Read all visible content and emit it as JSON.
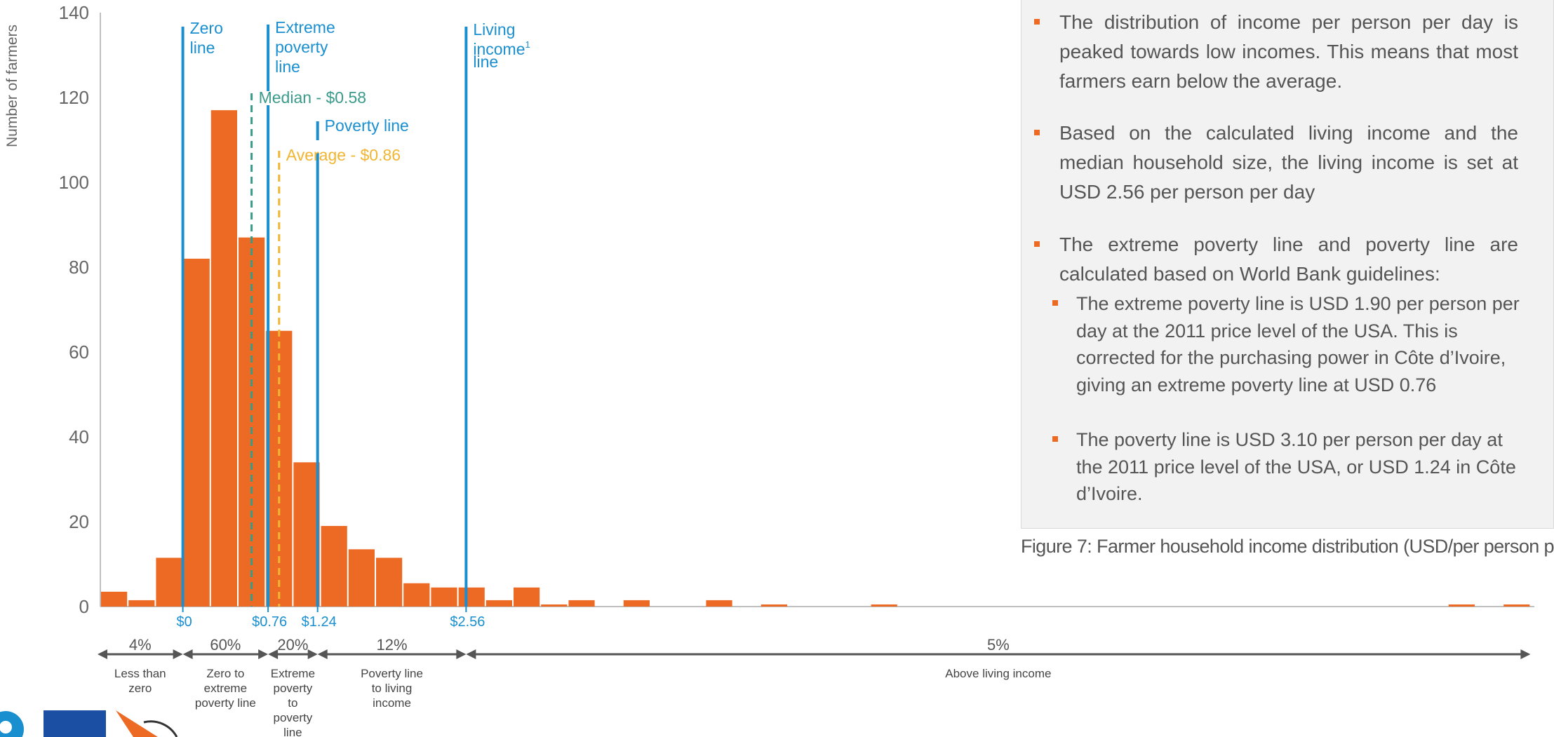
{
  "ylabel": "Number of farmers",
  "chart_data": {
    "type": "bar",
    "ylabel": "Number of farmers",
    "ylim": [
      0,
      140
    ],
    "yticks": [
      "0",
      "20",
      "40",
      "60",
      "80",
      "100",
      "120",
      "140"
    ],
    "grid": false,
    "bins": [
      {
        "bin": 0,
        "value": 3.5
      },
      {
        "bin": 1,
        "value": 1.5
      },
      {
        "bin": 2,
        "value": 11.5
      },
      {
        "bin": 3,
        "value": 82
      },
      {
        "bin": 4,
        "value": 117
      },
      {
        "bin": 5,
        "value": 87
      },
      {
        "bin": 6,
        "value": 65
      },
      {
        "bin": 7,
        "value": 34
      },
      {
        "bin": 8,
        "value": 19
      },
      {
        "bin": 9,
        "value": 13.5
      },
      {
        "bin": 10,
        "value": 11.5
      },
      {
        "bin": 11,
        "value": 5.5
      },
      {
        "bin": 12,
        "value": 4.5
      },
      {
        "bin": 13,
        "value": 4.5
      },
      {
        "bin": 14,
        "value": 1.5
      },
      {
        "bin": 15,
        "value": 4.5
      },
      {
        "bin": 16,
        "value": 0.5
      },
      {
        "bin": 17,
        "value": 1.5
      },
      {
        "bin": 19,
        "value": 1.5
      },
      {
        "bin": 22,
        "value": 1.5
      },
      {
        "bin": 24,
        "value": 0.5
      },
      {
        "bin": 28,
        "value": 0.5
      },
      {
        "bin": 49,
        "value": 0.5
      },
      {
        "bin": 51,
        "value": 0.5
      }
    ],
    "x_tick_labels": [
      {
        "label": "$0",
        "bin": 3
      },
      {
        "label": "$0.76",
        "bin": 6.1
      },
      {
        "label": "$1.24",
        "bin": 7.9
      },
      {
        "label": "$2.56",
        "bin": 13.3
      }
    ],
    "vertical_lines": [
      {
        "id": "zero",
        "lines": [
          "Zero",
          "line"
        ],
        "bin": 3,
        "style": "solid"
      },
      {
        "id": "extreme",
        "lines": [
          "Extreme",
          "poverty",
          "line"
        ],
        "bin": 6.1,
        "style": "solid"
      },
      {
        "id": "poverty",
        "lines": [
          "Poverty line"
        ],
        "bin": 7.9,
        "style": "solid"
      },
      {
        "id": "living",
        "lines": [
          "Living",
          "income",
          "line"
        ],
        "sup": "1",
        "bin": 13.3,
        "style": "solid"
      },
      {
        "id": "median",
        "lines": [
          "Median - $0.58"
        ],
        "bin": 5.5,
        "style": "dashed"
      },
      {
        "id": "average",
        "lines": [
          "Average - $0.86"
        ],
        "bin": 6.5,
        "style": "dashed"
      }
    ],
    "segments": [
      {
        "pct": "4%",
        "label": [
          "Less than",
          "zero"
        ],
        "from": 0,
        "to": 3
      },
      {
        "pct": "60%",
        "label": [
          "Zero to",
          "extreme",
          "poverty line"
        ],
        "from": 3,
        "to": 6.1
      },
      {
        "pct": "20%",
        "label": [
          "Extreme",
          "poverty",
          "to",
          "poverty",
          "line"
        ],
        "from": 6.1,
        "to": 7.9
      },
      {
        "pct": "12%",
        "label": [
          "Poverty line",
          "to living",
          "income"
        ],
        "from": 7.9,
        "to": 13.3
      },
      {
        "pct": "5%",
        "label": [
          "Above living income"
        ],
        "from": 13.3,
        "to": 52
      }
    ]
  },
  "colors": {
    "bar": "#ec6a24",
    "line": "#1a8fd0",
    "median": "#3a9a8a",
    "average": "#f2b531",
    "axis_text": "#666666",
    "arrow": "#555555"
  },
  "panel": {
    "bullets": [
      "The distribution of income per person per day is peaked towards low incomes. This means that most farmers earn below the average.",
      "Based on the calculated living income and the median household size, the living income is set at USD 2.56 per person per day",
      "The extreme poverty line and poverty line are calculated based on World Bank guidelines:"
    ],
    "subbullets": [
      "The extreme poverty line is USD 1.90 per person per day at the 2011 price level of the USA. This is corrected for the purchasing power in Côte d’Ivoire, giving an extreme poverty line at USD 0.76",
      "The poverty line is USD 3.10 per person per day at the 2011 price level of the USA, or USD 1.24 in Côte d’Ivoire."
    ]
  },
  "caption": "Figure 7: Farmer household income distribution (USD/per person p"
}
